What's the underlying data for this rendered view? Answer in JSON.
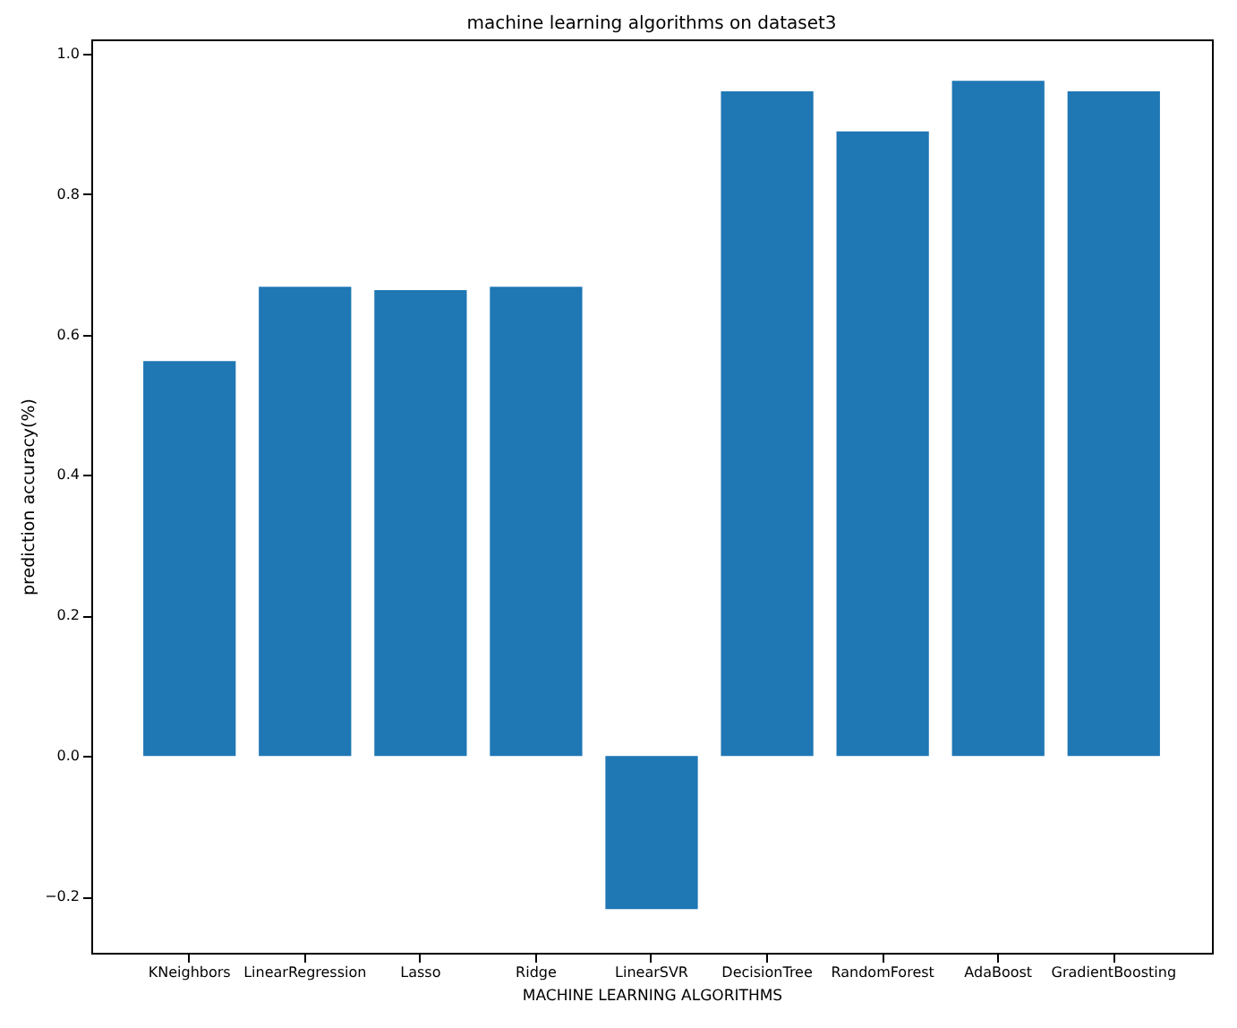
{
  "chart_data": {
    "type": "bar",
    "title": "machine learning algorithms on dataset3",
    "xlabel": "MACHINE LEARNING ALGORITHMS",
    "ylabel": "prediction accuracy(%)",
    "categories": [
      "KNeighbors",
      "LinearRegression",
      "Lasso",
      "Ridge",
      "LinearSVR",
      "DecisionTree",
      "RandomForest",
      "AdaBoost",
      "GradientBoosting"
    ],
    "values": [
      0.562,
      0.668,
      0.663,
      0.668,
      -0.218,
      0.946,
      0.889,
      0.961,
      0.946
    ],
    "color": "#1f77b4",
    "ylim": [
      -0.28,
      1.02
    ],
    "yticks": [
      {
        "value": -0.2,
        "label": "−0.2"
      },
      {
        "value": 0,
        "label": "0.0"
      },
      {
        "value": 0.2,
        "label": "0.2"
      },
      {
        "value": 0.4,
        "label": "0.4"
      },
      {
        "value": 0.6,
        "label": "0.6"
      },
      {
        "value": 0.8,
        "label": "0.8"
      },
      {
        "value": 1,
        "label": "1.0"
      }
    ],
    "grid": false
  }
}
